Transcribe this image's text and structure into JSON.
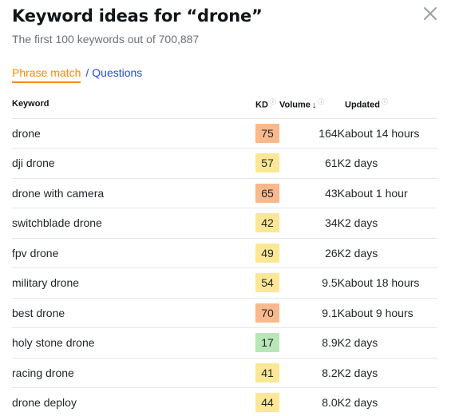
{
  "header": {
    "title": "Keyword ideas for “drone”",
    "subtitle": "The first 100 keywords out of 700,887"
  },
  "tabs": {
    "active": "Phrase match",
    "separator": "/",
    "other": "Questions"
  },
  "colors": {
    "accent": "#ff8800",
    "link": "#1f4fd6",
    "kd_easy": "#b8e6b6",
    "kd_medium": "#fbe795",
    "kd_hard": "#f9b98c"
  },
  "table": {
    "columns": {
      "keyword": "Keyword",
      "kd": "KD",
      "volume": "Volume",
      "updated": "Updated"
    },
    "rows": [
      {
        "keyword": "drone",
        "kd": "75",
        "kd_level": "hard",
        "volume": "164K",
        "updated": "about 14 hours"
      },
      {
        "keyword": "dji drone",
        "kd": "57",
        "kd_level": "medium",
        "volume": "61K",
        "updated": "2 days"
      },
      {
        "keyword": "drone with camera",
        "kd": "65",
        "kd_level": "hard",
        "volume": "43K",
        "updated": "about 1 hour"
      },
      {
        "keyword": "switchblade drone",
        "kd": "42",
        "kd_level": "medium",
        "volume": "34K",
        "updated": "2 days"
      },
      {
        "keyword": "fpv drone",
        "kd": "49",
        "kd_level": "medium",
        "volume": "26K",
        "updated": "2 days"
      },
      {
        "keyword": "military drone",
        "kd": "54",
        "kd_level": "medium",
        "volume": "9.5K",
        "updated": "about 18 hours"
      },
      {
        "keyword": "best drone",
        "kd": "70",
        "kd_level": "hard",
        "volume": "9.1K",
        "updated": "about 9 hours"
      },
      {
        "keyword": "holy stone drone",
        "kd": "17",
        "kd_level": "easy",
        "volume": "8.9K",
        "updated": "2 days"
      },
      {
        "keyword": "racing drone",
        "kd": "41",
        "kd_level": "medium",
        "volume": "8.2K",
        "updated": "2 days"
      },
      {
        "keyword": "drone deploy",
        "kd": "44",
        "kd_level": "medium",
        "volume": "8.0K",
        "updated": "2 days"
      }
    ]
  }
}
